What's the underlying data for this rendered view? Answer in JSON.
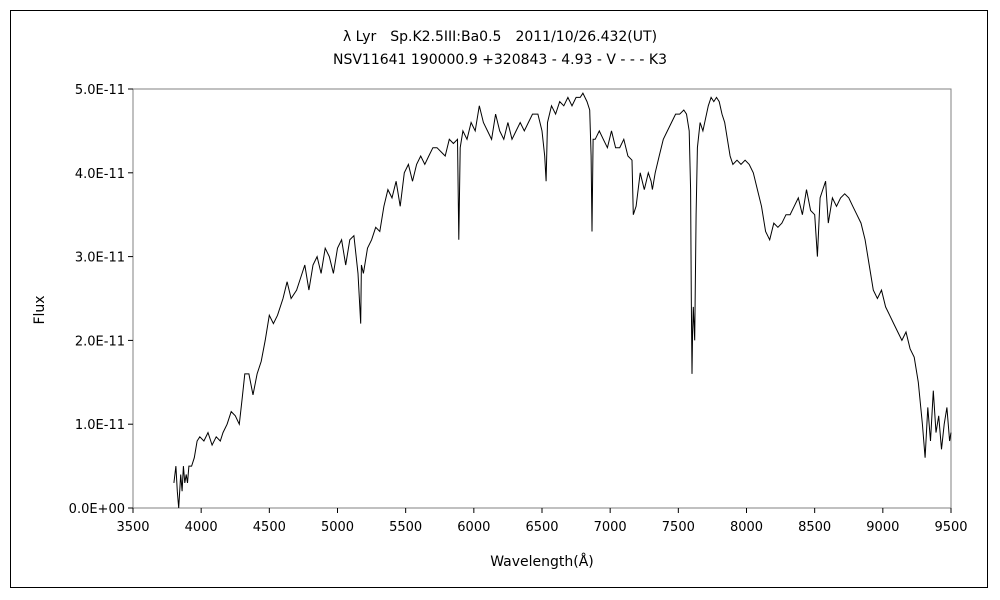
{
  "chart_data": {
    "type": "line",
    "title": "λ Lyr　Sp.K2.5III:Ba0.5　2011/10/26.432(UT)",
    "subtitle": "NSV11641 190000.9 +320843 - 4.93 - V - - - K3",
    "xlabel": "Wavelength(Å)",
    "ylabel": "Flux",
    "xlim": [
      3500,
      9500
    ],
    "ylim": [
      0,
      5e-11
    ],
    "x_ticks": [
      "3500",
      "4000",
      "4500",
      "5000",
      "5500",
      "6000",
      "6500",
      "7000",
      "7500",
      "8000",
      "8500",
      "9000",
      "9500"
    ],
    "y_ticks": [
      "0.0E+00",
      "1.0E-11",
      "2.0E-11",
      "3.0E-11",
      "4.0E-11",
      "5.0E-11"
    ],
    "grid": false,
    "legend": "none",
    "line_color": "#000000",
    "series": [
      {
        "x": [
          3800,
          3815,
          3825,
          3835,
          3850,
          3860,
          3870,
          3880,
          3890,
          3900,
          3910,
          3930,
          3950,
          3970,
          3990,
          4020,
          4050,
          4080,
          4110,
          4140,
          4160,
          4190,
          4220,
          4250,
          4280,
          4300,
          4320,
          4350,
          4380,
          4410,
          4440,
          4470,
          4500,
          4530,
          4560,
          4600,
          4630,
          4660,
          4700,
          4730,
          4760,
          4790,
          4820,
          4850,
          4880,
          4910,
          4940,
          4970,
          5000,
          5030,
          5060,
          5090,
          5120,
          5150,
          5170,
          5175,
          5190,
          5220,
          5250,
          5280,
          5310,
          5340,
          5370,
          5400,
          5430,
          5460,
          5490,
          5520,
          5550,
          5580,
          5610,
          5640,
          5670,
          5700,
          5730,
          5760,
          5790,
          5820,
          5850,
          5880,
          5890,
          5900,
          5920,
          5950,
          5980,
          6010,
          6040,
          6070,
          6100,
          6130,
          6160,
          6190,
          6220,
          6250,
          6280,
          6310,
          6340,
          6370,
          6400,
          6430,
          6470,
          6500,
          6520,
          6530,
          6540,
          6570,
          6600,
          6630,
          6660,
          6690,
          6720,
          6750,
          6780,
          6800,
          6830,
          6850,
          6860,
          6867,
          6875,
          6890,
          6920,
          6950,
          6980,
          7010,
          7040,
          7070,
          7100,
          7130,
          7160,
          7170,
          7190,
          7220,
          7250,
          7280,
          7300,
          7310,
          7330,
          7360,
          7390,
          7420,
          7450,
          7480,
          7510,
          7540,
          7560,
          7580,
          7590,
          7595,
          7600,
          7605,
          7610,
          7620,
          7630,
          7640,
          7660,
          7680,
          7700,
          7720,
          7740,
          7760,
          7780,
          7800,
          7820,
          7840,
          7860,
          7880,
          7900,
          7930,
          7960,
          7990,
          8020,
          8050,
          8080,
          8110,
          8140,
          8170,
          8200,
          8230,
          8260,
          8290,
          8320,
          8350,
          8380,
          8410,
          8440,
          8470,
          8500,
          8520,
          8540,
          8560,
          8580,
          8600,
          8630,
          8660,
          8690,
          8720,
          8750,
          8780,
          8810,
          8840,
          8870,
          8900,
          8930,
          8960,
          8990,
          9020,
          9050,
          9080,
          9110,
          9140,
          9170,
          9200,
          9230,
          9260,
          9290,
          9310,
          9330,
          9350,
          9370,
          9390,
          9410,
          9430,
          9450,
          9470,
          9490,
          9500
        ],
        "y": [
          3e-12,
          5e-12,
          2e-12,
          0.0,
          4e-12,
          2e-12,
          5e-12,
          3e-12,
          4e-12,
          3e-12,
          5e-12,
          5e-12,
          6e-12,
          8e-12,
          8.5e-12,
          8e-12,
          9e-12,
          7.5e-12,
          8.5e-12,
          8e-12,
          9e-12,
          1e-11,
          1.15e-11,
          1.1e-11,
          1e-11,
          1.3e-11,
          1.6e-11,
          1.6e-11,
          1.35e-11,
          1.6e-11,
          1.75e-11,
          2e-11,
          2.3e-11,
          2.2e-11,
          2.3e-11,
          2.5e-11,
          2.7e-11,
          2.5e-11,
          2.6e-11,
          2.75e-11,
          2.9e-11,
          2.6e-11,
          2.9e-11,
          3e-11,
          2.8e-11,
          3.1e-11,
          3e-11,
          2.8e-11,
          3.1e-11,
          3.2e-11,
          2.9e-11,
          3.2e-11,
          3.25e-11,
          2.8e-11,
          2.2e-11,
          2.9e-11,
          2.8e-11,
          3.1e-11,
          3.2e-11,
          3.35e-11,
          3.3e-11,
          3.6e-11,
          3.8e-11,
          3.7e-11,
          3.9e-11,
          3.6e-11,
          4e-11,
          4.1e-11,
          3.9e-11,
          4.1e-11,
          4.2e-11,
          4.1e-11,
          4.2e-11,
          4.3e-11,
          4.3e-11,
          4.25e-11,
          4.2e-11,
          4.4e-11,
          4.35e-11,
          4.4e-11,
          3.2e-11,
          4.3e-11,
          4.5e-11,
          4.4e-11,
          4.6e-11,
          4.5e-11,
          4.8e-11,
          4.6e-11,
          4.5e-11,
          4.4e-11,
          4.7e-11,
          4.5e-11,
          4.4e-11,
          4.6e-11,
          4.4e-11,
          4.5e-11,
          4.6e-11,
          4.5e-11,
          4.6e-11,
          4.7e-11,
          4.7e-11,
          4.5e-11,
          4.2e-11,
          3.9e-11,
          4.6e-11,
          4.8e-11,
          4.7e-11,
          4.85e-11,
          4.8e-11,
          4.9e-11,
          4.8e-11,
          4.9e-11,
          4.9e-11,
          4.95e-11,
          4.85e-11,
          4.75e-11,
          4.2e-11,
          3.3e-11,
          4.4e-11,
          4.4e-11,
          4.5e-11,
          4.4e-11,
          4.3e-11,
          4.5e-11,
          4.3e-11,
          4.3e-11,
          4.4e-11,
          4.2e-11,
          4.15e-11,
          3.5e-11,
          3.6e-11,
          4e-11,
          3.8e-11,
          4e-11,
          3.9e-11,
          3.8e-11,
          4e-11,
          4.2e-11,
          4.4e-11,
          4.5e-11,
          4.6e-11,
          4.7e-11,
          4.7e-11,
          4.75e-11,
          4.7e-11,
          4.5e-11,
          3.8e-11,
          2.5e-11,
          1.6e-11,
          2.1e-11,
          2.4e-11,
          2e-11,
          3.5e-11,
          4.3e-11,
          4.6e-11,
          4.5e-11,
          4.65e-11,
          4.8e-11,
          4.9e-11,
          4.85e-11,
          4.9e-11,
          4.85e-11,
          4.7e-11,
          4.6e-11,
          4.4e-11,
          4.2e-11,
          4.1e-11,
          4.15e-11,
          4.1e-11,
          4.15e-11,
          4.1e-11,
          4e-11,
          3.8e-11,
          3.6e-11,
          3.3e-11,
          3.2e-11,
          3.4e-11,
          3.35e-11,
          3.4e-11,
          3.5e-11,
          3.5e-11,
          3.6e-11,
          3.7e-11,
          3.5e-11,
          3.8e-11,
          3.55e-11,
          3.5e-11,
          3e-11,
          3.7e-11,
          3.8e-11,
          3.9e-11,
          3.4e-11,
          3.7e-11,
          3.6e-11,
          3.7e-11,
          3.75e-11,
          3.7e-11,
          3.6e-11,
          3.5e-11,
          3.4e-11,
          3.2e-11,
          2.9e-11,
          2.6e-11,
          2.5e-11,
          2.6e-11,
          2.4e-11,
          2.3e-11,
          2.2e-11,
          2.1e-11,
          2e-11,
          2.1e-11,
          1.9e-11,
          1.8e-11,
          1.5e-11,
          1e-11,
          6e-12,
          1.2e-11,
          8e-12,
          1.4e-11,
          9e-12,
          1.1e-11,
          7e-12,
          1e-11,
          1.2e-11,
          8e-12,
          9e-12
        ]
      }
    ]
  }
}
